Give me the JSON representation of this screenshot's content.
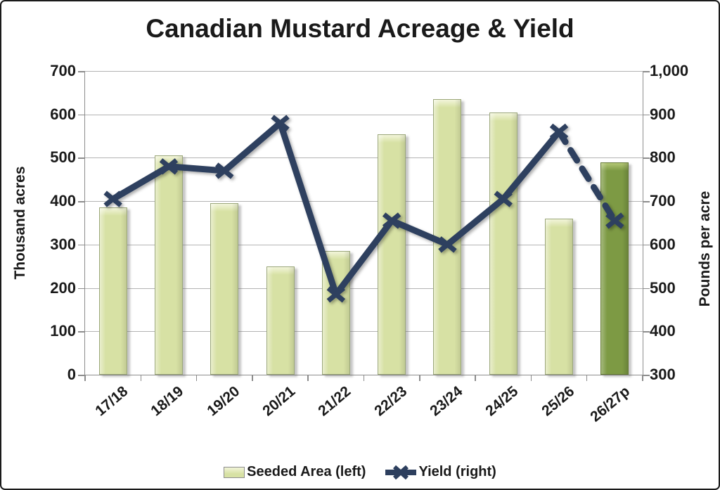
{
  "chart_data": {
    "type": "combo-bar-line",
    "title": "Canadian Mustard Acreage & Yield",
    "categories": [
      "17/18",
      "18/19",
      "19/20",
      "20/21",
      "21/22",
      "22/23",
      "23/24",
      "24/25",
      "25/26",
      "26/27p"
    ],
    "series": [
      {
        "name": "Seeded Area (left)",
        "type": "bar",
        "axis": "left",
        "values": [
          385,
          505,
          395,
          250,
          285,
          555,
          635,
          605,
          360,
          490
        ],
        "projection_last_bar": true
      },
      {
        "name": "Yield (right)",
        "type": "line",
        "axis": "right",
        "values": [
          705,
          780,
          770,
          880,
          485,
          655,
          600,
          705,
          860,
          655
        ],
        "dashed_last_segment": true,
        "marker": "x"
      }
    ],
    "left_axis": {
      "label": "Thousand acres",
      "min": 0,
      "max": 700,
      "step": 100,
      "ticks": [
        "700",
        "600",
        "500",
        "400",
        "300",
        "200",
        "100",
        "0"
      ]
    },
    "right_axis": {
      "label": "Pounds per acre",
      "min": 300,
      "max": 1000,
      "step": 100,
      "ticks": [
        "1,000",
        "900",
        "800",
        "700",
        "600",
        "500",
        "400",
        "300"
      ]
    },
    "legend": [
      {
        "label": "Seeded Area (left)",
        "swatch": "bar"
      },
      {
        "label": "Yield (right)",
        "swatch": "line-x"
      }
    ],
    "grid": "horizontal",
    "legend_position": "bottom",
    "colors": {
      "bar_fill": "#d7e1a4",
      "bar_highlight": "#f2f5da",
      "bar_border": "#9ba77a",
      "bar_projection_fill": "#7d9a44",
      "bar_projection_highlight": "#b3c775",
      "bar_projection_border": "#667a36",
      "line": "#2d3f5e",
      "grid": "#b3b3b3",
      "axis": "#8c8c8c",
      "text": "#1a1a1a"
    }
  }
}
